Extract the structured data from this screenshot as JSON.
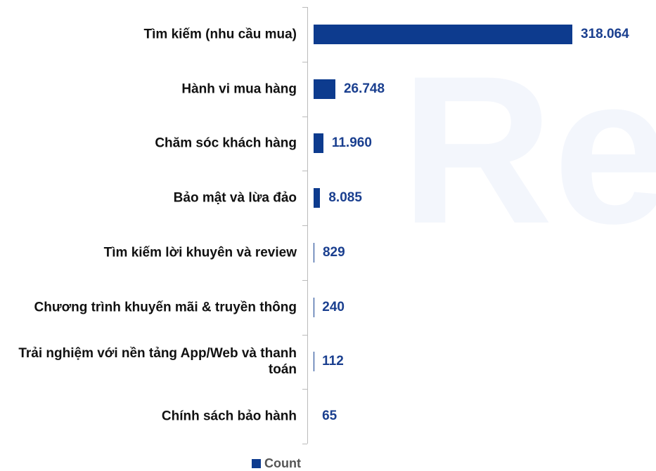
{
  "chart_data": {
    "type": "bar",
    "orientation": "horizontal",
    "watermark": "Rep",
    "categories": [
      "Tìm kiếm (nhu cầu mua)",
      "Hành vi mua hàng",
      "Chăm sóc khách hàng",
      "Bảo mật và lừa đảo",
      "Tìm kiếm lời khuyên và review",
      "Chương trình khuyến mãi & truyền thông",
      "Trải nghiệm với nền tảng App/Web và thanh toán",
      "Chính sách bảo hành"
    ],
    "series": [
      {
        "name": "Count",
        "color": "#0d3b8e",
        "values": [
          318064,
          26748,
          11960,
          8085,
          829,
          240,
          112,
          65
        ],
        "value_labels": [
          "318.064",
          "26.748",
          "11.960",
          "8.085",
          "829",
          "240",
          "112",
          "65"
        ]
      }
    ],
    "legend": "bottom"
  }
}
